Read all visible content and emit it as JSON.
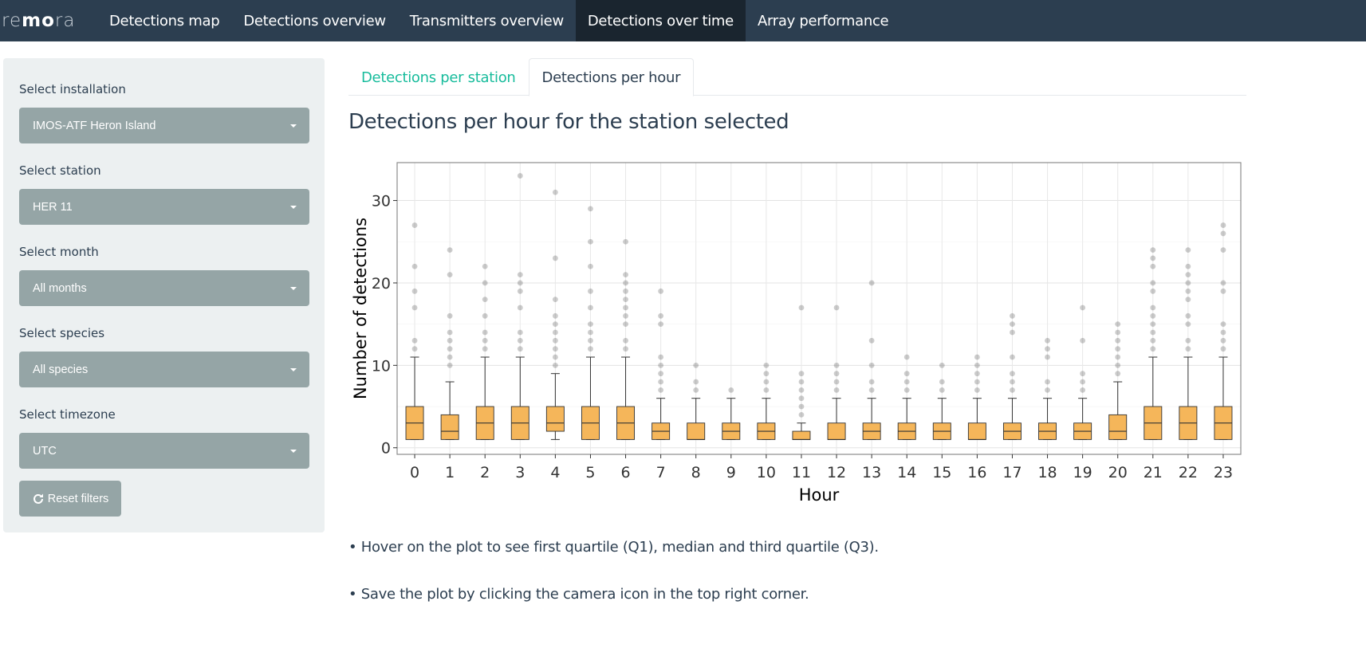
{
  "navbar": {
    "brand_light_1": "re",
    "brand_bold": "mo",
    "brand_light_2": "ra",
    "items": [
      {
        "label": "Detections map"
      },
      {
        "label": "Detections overview"
      },
      {
        "label": "Transmitters overview"
      },
      {
        "label": "Detections over time"
      },
      {
        "label": "Array performance"
      }
    ],
    "active_index": 3
  },
  "sidebar": {
    "installation": {
      "label": "Select installation",
      "value": "IMOS-ATF Heron Island"
    },
    "station": {
      "label": "Select station",
      "value": "HER 11"
    },
    "month": {
      "label": "Select month",
      "value": "All months"
    },
    "species": {
      "label": "Select species",
      "value": "All species"
    },
    "timezone": {
      "label": "Select timezone",
      "value": "UTC"
    },
    "reset_label": "Reset filters"
  },
  "tabs": [
    {
      "label": "Detections per station",
      "active": false
    },
    {
      "label": "Detections per hour",
      "active": true
    }
  ],
  "page_title": "Detections per hour for the station selected",
  "notes": [
    "• Hover on the plot to see first quartile (Q1), median and third quartile (Q3).",
    "• Save the plot by clicking the camera icon in the top right corner."
  ],
  "colors": {
    "navbar_bg": "#2c3e50",
    "navbar_active": "#1a252f",
    "accent_green": "#18bc9c",
    "select_bg": "#95a5a6",
    "sidebar_bg": "#ecf0f1",
    "box_fill": "#f5b65a"
  },
  "chart_data": {
    "type": "box",
    "xlabel": "Hour",
    "ylabel": "Number of detections",
    "categories": [
      "0",
      "1",
      "2",
      "3",
      "4",
      "5",
      "6",
      "7",
      "8",
      "9",
      "10",
      "11",
      "12",
      "13",
      "14",
      "15",
      "16",
      "17",
      "18",
      "19",
      "20",
      "21",
      "22",
      "23"
    ],
    "ylim": [
      -0.8,
      34.6
    ],
    "yticks": [
      0,
      10,
      20,
      30
    ],
    "grid": true,
    "box_color": "#f5b65a",
    "boxes": [
      {
        "min": 1,
        "q1": 1,
        "median": 3,
        "q3": 5,
        "max": 11,
        "outliers": [
          12,
          13,
          17,
          19,
          22,
          27
        ]
      },
      {
        "min": 1,
        "q1": 1,
        "median": 2,
        "q3": 4,
        "max": 8,
        "outliers": [
          10,
          11,
          12,
          13,
          14,
          16,
          21,
          24
        ]
      },
      {
        "min": 1,
        "q1": 1,
        "median": 3,
        "q3": 5,
        "max": 11,
        "outliers": [
          12,
          13,
          14,
          16,
          18,
          20,
          22
        ]
      },
      {
        "min": 1,
        "q1": 1,
        "median": 3,
        "q3": 5,
        "max": 11,
        "outliers": [
          12,
          13,
          14,
          17,
          19,
          20,
          21,
          33
        ]
      },
      {
        "min": 1,
        "q1": 2,
        "median": 3,
        "q3": 5,
        "max": 9,
        "outliers": [
          10,
          11,
          12,
          13,
          14,
          15,
          16,
          18,
          23,
          31
        ]
      },
      {
        "min": 1,
        "q1": 1,
        "median": 3,
        "q3": 5,
        "max": 11,
        "outliers": [
          12,
          13,
          14,
          15,
          17,
          19,
          22,
          25,
          29
        ]
      },
      {
        "min": 1,
        "q1": 1,
        "median": 3,
        "q3": 5,
        "max": 11,
        "outliers": [
          12,
          13,
          15,
          16,
          17,
          18,
          19,
          20,
          21,
          25
        ]
      },
      {
        "min": 1,
        "q1": 1,
        "median": 2,
        "q3": 3,
        "max": 6,
        "outliers": [
          7,
          8,
          9,
          10,
          11,
          15,
          16,
          19
        ]
      },
      {
        "min": 1,
        "q1": 1,
        "median": 1,
        "q3": 3,
        "max": 6,
        "outliers": [
          7,
          8,
          10
        ]
      },
      {
        "min": 1,
        "q1": 1,
        "median": 2,
        "q3": 3,
        "max": 6,
        "outliers": [
          7
        ]
      },
      {
        "min": 1,
        "q1": 1,
        "median": 2,
        "q3": 3,
        "max": 6,
        "outliers": [
          7,
          8,
          9,
          10
        ]
      },
      {
        "min": 1,
        "q1": 1,
        "median": 1,
        "q3": 2,
        "max": 3,
        "outliers": [
          4,
          5,
          6,
          7,
          8,
          9,
          17
        ]
      },
      {
        "min": 1,
        "q1": 1,
        "median": 1,
        "q3": 3,
        "max": 6,
        "outliers": [
          7,
          8,
          9,
          10,
          17
        ]
      },
      {
        "min": 1,
        "q1": 1,
        "median": 2,
        "q3": 3,
        "max": 6,
        "outliers": [
          7,
          8,
          10,
          13,
          20
        ]
      },
      {
        "min": 1,
        "q1": 1,
        "median": 2,
        "q3": 3,
        "max": 6,
        "outliers": [
          7,
          8,
          9,
          11
        ]
      },
      {
        "min": 1,
        "q1": 1,
        "median": 2,
        "q3": 3,
        "max": 6,
        "outliers": [
          7,
          8,
          10
        ]
      },
      {
        "min": 1,
        "q1": 1,
        "median": 1,
        "q3": 3,
        "max": 6,
        "outliers": [
          7,
          8,
          9,
          10,
          11
        ]
      },
      {
        "min": 1,
        "q1": 1,
        "median": 2,
        "q3": 3,
        "max": 6,
        "outliers": [
          7,
          8,
          9,
          11,
          14,
          15,
          16
        ]
      },
      {
        "min": 1,
        "q1": 1,
        "median": 2,
        "q3": 3,
        "max": 6,
        "outliers": [
          7,
          8,
          11,
          12,
          13
        ]
      },
      {
        "min": 1,
        "q1": 1,
        "median": 2,
        "q3": 3,
        "max": 6,
        "outliers": [
          7,
          8,
          9,
          13,
          17
        ]
      },
      {
        "min": 1,
        "q1": 1,
        "median": 2,
        "q3": 4,
        "max": 8,
        "outliers": [
          9,
          10,
          11,
          12,
          13,
          14,
          15
        ]
      },
      {
        "min": 1,
        "q1": 1,
        "median": 3,
        "q3": 5,
        "max": 11,
        "outliers": [
          12,
          13,
          14,
          15,
          16,
          17,
          19,
          20,
          22,
          23,
          24
        ]
      },
      {
        "min": 1,
        "q1": 1,
        "median": 3,
        "q3": 5,
        "max": 11,
        "outliers": [
          12,
          13,
          15,
          16,
          18,
          19,
          20,
          21,
          22,
          24
        ]
      },
      {
        "min": 1,
        "q1": 1,
        "median": 3,
        "q3": 5,
        "max": 11,
        "outliers": [
          12,
          13,
          14,
          15,
          19,
          20,
          24,
          26,
          27
        ]
      }
    ]
  }
}
